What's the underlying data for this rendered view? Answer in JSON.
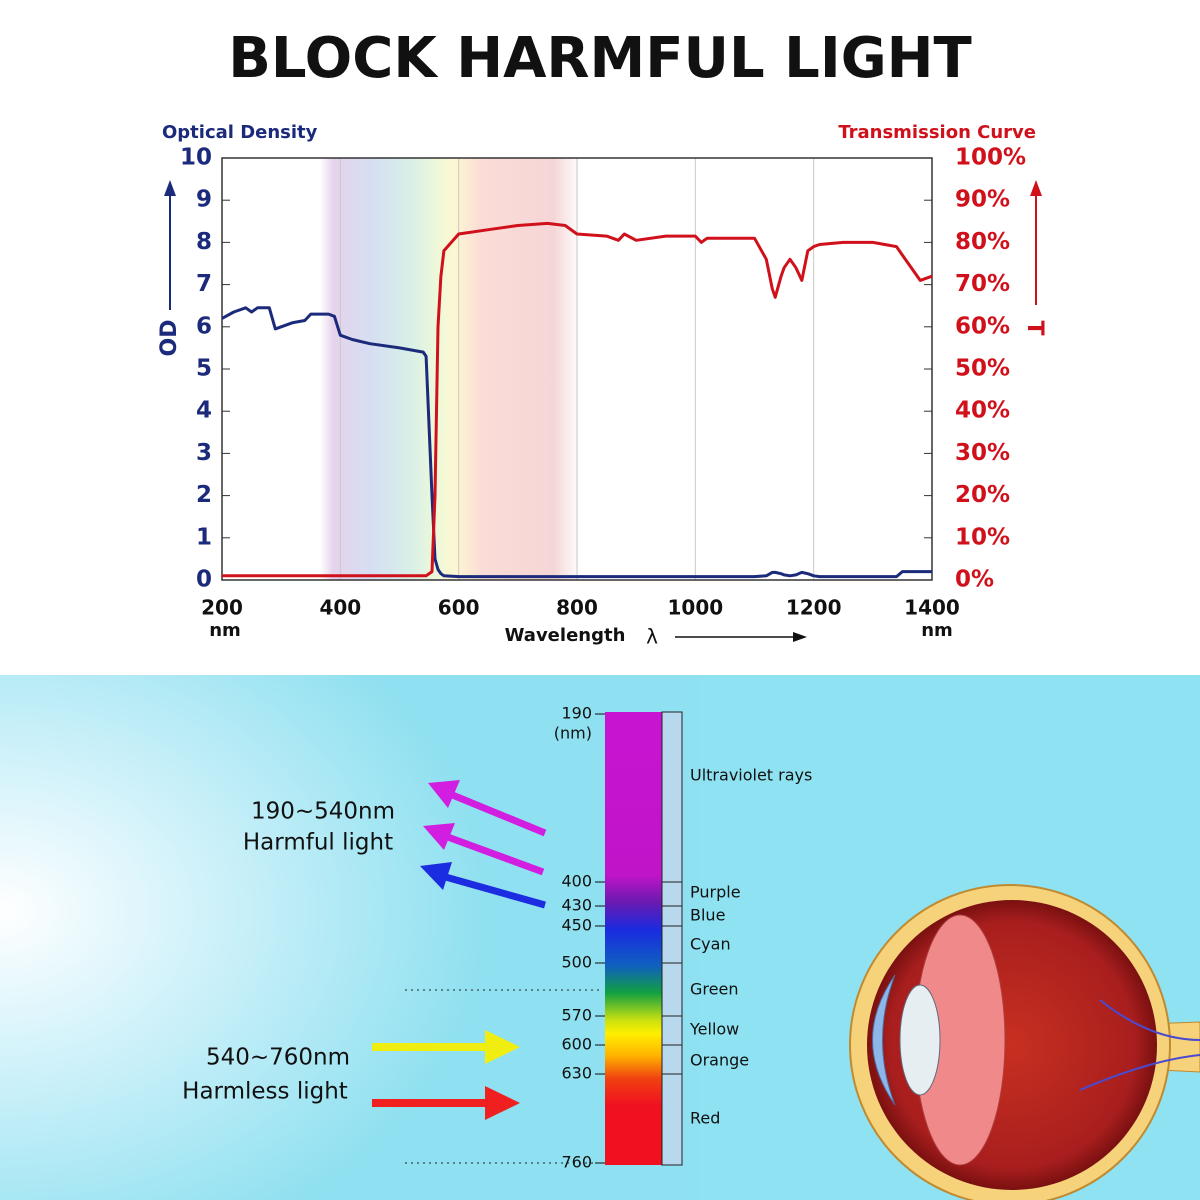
{
  "title": "BLOCK HARMFUL LIGHT",
  "chart_data": {
    "type": "line",
    "y_label_top": "Optical Density",
    "y_label": "OD",
    "y2_label_top": "Transmission Curve",
    "y2_label": "T",
    "x_label": "Wavelength",
    "x_symbol": "λ",
    "x_unit": "nm",
    "x": [
      200,
      220,
      240,
      250,
      260,
      280,
      290,
      300,
      320,
      340,
      350,
      380,
      390,
      400,
      420,
      450,
      500,
      540,
      545,
      555,
      560,
      565,
      570,
      575,
      600,
      650,
      700,
      750,
      780,
      800,
      850,
      870,
      880,
      900,
      950,
      1000,
      1010,
      1020,
      1100,
      1120,
      1130,
      1135,
      1145,
      1150,
      1160,
      1170,
      1180,
      1190,
      1200,
      1210,
      1250,
      1300,
      1340,
      1350,
      1360,
      1380,
      1400
    ],
    "series": [
      {
        "name": "Optical Density",
        "color": "#1b2a7a",
        "axis": "y",
        "values": [
          6.2,
          6.35,
          6.45,
          6.35,
          6.45,
          6.45,
          5.95,
          6.0,
          6.1,
          6.15,
          6.3,
          6.3,
          6.25,
          5.8,
          5.7,
          5.6,
          5.5,
          5.4,
          5.3,
          2,
          0.5,
          0.25,
          0.15,
          0.1,
          0.08,
          0.08,
          0.08,
          0.08,
          0.08,
          0.08,
          0.08,
          0.08,
          0.08,
          0.08,
          0.08,
          0.08,
          0.08,
          0.08,
          0.08,
          0.1,
          0.18,
          0.18,
          0.15,
          0.12,
          0.1,
          0.12,
          0.18,
          0.15,
          0.1,
          0.08,
          0.08,
          0.08,
          0.08,
          0.2,
          0.2,
          0.2,
          0.2
        ]
      },
      {
        "name": "Transmission Curve",
        "color": "#d0111b",
        "axis": "y2",
        "values": [
          1,
          1,
          1,
          1,
          1,
          1,
          1,
          1,
          1,
          1,
          1,
          1,
          1,
          1,
          1,
          1,
          1,
          1,
          1,
          2,
          20,
          60,
          72,
          78,
          82,
          83,
          84,
          84.5,
          84,
          82,
          81.5,
          80.5,
          82,
          80.5,
          81.5,
          81.5,
          80,
          81,
          81,
          76,
          69,
          67,
          72,
          74,
          76,
          74,
          71,
          78,
          79,
          79.5,
          80,
          80,
          79,
          77,
          75,
          71,
          72
        ]
      }
    ],
    "xlim": [
      200,
      1400
    ],
    "xticks": [
      200,
      400,
      600,
      800,
      1000,
      1200,
      1400
    ],
    "ylim": [
      0,
      10
    ],
    "yticks": [
      0,
      1,
      2,
      3,
      4,
      5,
      6,
      7,
      8,
      9,
      10
    ],
    "y2lim": [
      0,
      100
    ],
    "y2ticks": [
      {
        "value": 0,
        "label": "0%"
      },
      {
        "value": 10,
        "label": "10%"
      },
      {
        "value": 20,
        "label": "20%"
      },
      {
        "value": 30,
        "label": "30%"
      },
      {
        "value": 40,
        "label": "40%"
      },
      {
        "value": 50,
        "label": "50%"
      },
      {
        "value": 60,
        "label": "60%"
      },
      {
        "value": 70,
        "label": "70%"
      },
      {
        "value": 80,
        "label": "80%"
      },
      {
        "value": 90,
        "label": "90%"
      },
      {
        "value": 100,
        "label": "100%"
      }
    ],
    "grid": true
  },
  "spectrum": {
    "scale_labels": [
      "190",
      "(nm)",
      "400",
      "430",
      "450",
      "500",
      "570",
      "600",
      "630",
      "760"
    ],
    "bands": [
      "Ultraviolet rays",
      "Purple",
      "Blue",
      "Cyan",
      "Green",
      "Yellow",
      "Orange",
      "Red"
    ],
    "groups": [
      {
        "range": "190~540nm",
        "label": "Harmful light"
      },
      {
        "range": "540~760nm",
        "label": "Harmless light"
      }
    ]
  }
}
